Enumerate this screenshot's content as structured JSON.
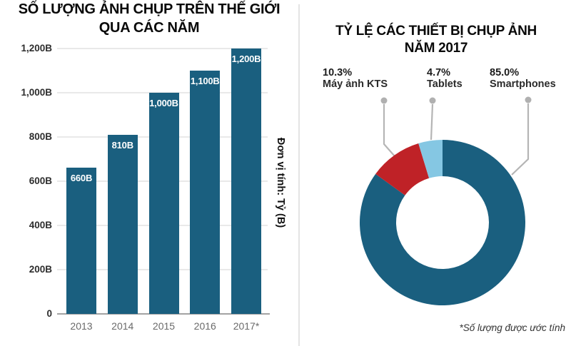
{
  "colors": {
    "teal": "#1a5f7f",
    "red": "#bf2227",
    "light_blue": "#85c7e3",
    "leader_gray": "#b5b5b5",
    "grid_gray": "#e9e9e9",
    "axis_gray": "#a3a3a3"
  },
  "chart_data": [
    {
      "id": "photos-per-year",
      "type": "bar",
      "title": "SỐ LƯỢNG ẢNH CHỤP TRÊN THẾ GIỚI QUA CÁC NĂM",
      "title_lines": [
        "SỐ LƯỢNG ẢNH CHỤP TRÊN THẾ GIỚI",
        "QUA CÁC NĂM"
      ],
      "unit_label": "Đơn vị tính: Tỷ (B)",
      "categories": [
        "2013",
        "2014",
        "2015",
        "2016",
        "2017*"
      ],
      "values": [
        660,
        810,
        1000,
        1100,
        1200
      ],
      "value_labels": [
        "660B",
        "810B",
        "1,000B",
        "1,100B",
        "1,200B"
      ],
      "ylim": [
        0,
        1200
      ],
      "yticks": [
        0,
        200,
        400,
        600,
        800,
        1000,
        1200
      ],
      "ytick_labels": [
        "0",
        "200B",
        "400B",
        "600B",
        "800B",
        "1,000B",
        "1,200B"
      ],
      "bar_color": "#1a5f7f",
      "grid": true,
      "legend": "none"
    },
    {
      "id": "devices-2017",
      "type": "pie",
      "donut": true,
      "title": "TỶ LỆ CÁC THIẾT BỊ CHỤP ẢNH NĂM 2017",
      "title_lines": [
        "TỶ LỆ CÁC THIẾT BỊ CHỤP ẢNH",
        "NĂM 2017"
      ],
      "start_angle_deg": 0,
      "direction": "clockwise",
      "slices": [
        {
          "label": "Smartphones",
          "value": 85.0,
          "display": "85.0%",
          "color": "#1a5f7f"
        },
        {
          "label": "Máy ảnh KTS",
          "value": 10.3,
          "display": "10.3%",
          "color": "#bf2227"
        },
        {
          "label": "Tablets",
          "value": 4.7,
          "display": "4.7%",
          "color": "#85c7e3"
        }
      ],
      "note": "*Số lượng được ước tính"
    }
  ]
}
